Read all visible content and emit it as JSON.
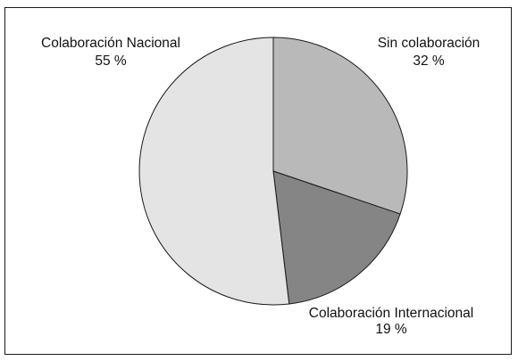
{
  "chart_data": {
    "type": "pie",
    "title": "",
    "start_angle_deg": 0,
    "direction": "clockwise",
    "slices": [
      {
        "label": "Sin colaboración",
        "value": 32,
        "value_label": "32 %",
        "color": "#b9b9b9"
      },
      {
        "label": "Colaboración Internacional",
        "value": 19,
        "value_label": "19 %",
        "color": "#858585"
      },
      {
        "label": "Colaboración Nacional",
        "value": 55,
        "value_label": "55 %",
        "color": "#e4e4e4"
      }
    ],
    "legend": "none"
  }
}
